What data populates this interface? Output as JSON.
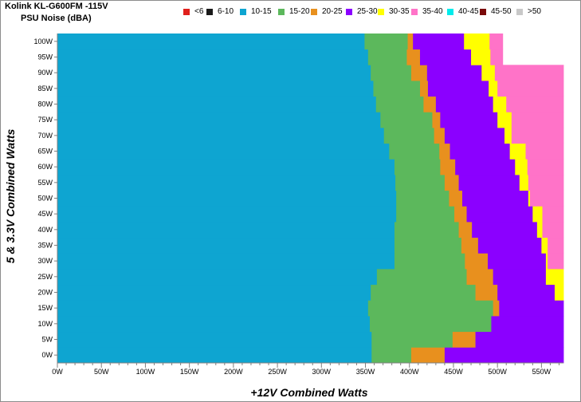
{
  "chart_data": {
    "type": "heatmap",
    "title": "Kolink KL-G600FM -115V",
    "subtitle": "PSU Noise (dBA)",
    "xlabel": "+12V Combined Watts",
    "ylabel": "5 & 3.3V Combined Watts",
    "x_ticks": [
      "0W",
      "50W",
      "100W",
      "150W",
      "200W",
      "250W",
      "300W",
      "350W",
      "400W",
      "450W",
      "500W",
      "550W"
    ],
    "y_ticks": [
      "0W",
      "5W",
      "10W",
      "15W",
      "20W",
      "25W",
      "30W",
      "35W",
      "40W",
      "45W",
      "50W",
      "55W",
      "60W",
      "65W",
      "70W",
      "75W",
      "80W",
      "85W",
      "90W",
      "95W",
      "100W"
    ],
    "xlim": [
      0,
      575
    ],
    "ylim": [
      0,
      100
    ],
    "legend_position": "top",
    "legend": [
      {
        "label": "<6",
        "color": "#e0201c"
      },
      {
        "label": "6-10",
        "color": "#1a1a1a"
      },
      {
        "label": "10-15",
        "color": "#0ea5d1"
      },
      {
        "label": "15-20",
        "color": "#5cb85c"
      },
      {
        "label": "20-25",
        "color": "#e8901e"
      },
      {
        "label": "25-30",
        "color": "#8b00ff"
      },
      {
        "label": "30-35",
        "color": "#ffff00"
      },
      {
        "label": "35-40",
        "color": "#ff73c8"
      },
      {
        "label": "40-45",
        "color": "#00ecec"
      },
      {
        "label": "45-50",
        "color": "#7a0a0a"
      },
      {
        "label": ">50",
        "color": "#c8c8c8"
      }
    ],
    "y_levels": [
      0,
      5,
      10,
      15,
      20,
      25,
      30,
      35,
      40,
      45,
      50,
      55,
      60,
      65,
      70,
      75,
      80,
      85,
      90,
      95,
      100
    ],
    "boundaries": [
      {
        "band": "10-15",
        "upper_x": [
          357,
          357,
          355,
          353,
          356,
          363,
          383,
          383,
          383,
          385,
          385,
          384,
          383,
          377,
          371,
          367,
          362,
          359,
          356,
          353,
          349
        ]
      },
      {
        "band": "15-20",
        "upper_x": [
          402,
          449,
          493,
          495,
          475,
          465,
          463,
          459,
          456,
          451,
          445,
          440,
          435,
          434,
          428,
          426,
          416,
          412,
          402,
          397,
          398
        ]
      },
      {
        "band": "20-25",
        "upper_x": [
          440,
          475,
          490,
          502,
          500,
          495,
          489,
          478,
          471,
          465,
          460,
          456,
          452,
          446,
          440,
          435,
          430,
          421,
          420,
          412,
          404
        ]
      },
      {
        "band": "25-30",
        "upper_x": [
          575,
          575,
          575,
          575,
          565,
          555,
          555,
          550,
          545,
          540,
          535,
          525,
          520,
          514,
          508,
          500,
          495,
          490,
          482,
          470,
          462
        ]
      },
      {
        "band": "30-35",
        "upper_x": [
          575,
          575,
          575,
          575,
          575,
          575,
          557,
          557,
          551,
          551,
          537,
          535,
          534,
          532,
          516,
          516,
          510,
          500,
          497,
          492,
          491
        ]
      },
      {
        "band": "35-40",
        "upper_x": [
          575,
          575,
          575,
          575,
          575,
          575,
          575,
          575,
          575,
          575,
          575,
          575,
          575,
          575,
          575,
          575,
          575,
          575,
          575,
          506,
          506
        ]
      }
    ]
  }
}
